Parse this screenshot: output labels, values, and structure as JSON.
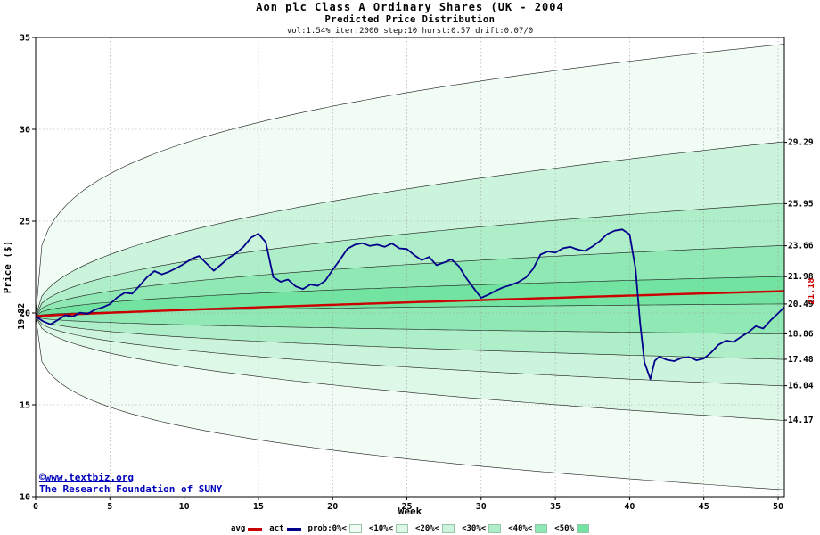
{
  "footer": {
    "site": "©www.textbiz.org",
    "org": "The Research Foundation of SUNY"
  },
  "chart_data": {
    "type": "fan",
    "title": "Aon plc Class A Ordinary Shares (UK - 2004",
    "subtitle": "Predicted Price Distribution",
    "params_line": "vol:1.54% iter:2000 step:10 hurst:0.57 drift:0.07/0",
    "xlabel": "Week",
    "ylabel": "Price ($)",
    "xlim": [
      0,
      50.42
    ],
    "ylim": [
      10,
      35
    ],
    "grid": true,
    "x_axis": {
      "label": "Week",
      "ticks": [
        0,
        5,
        10,
        15,
        20,
        25,
        30,
        35,
        40,
        45,
        50
      ]
    },
    "y_axis": {
      "label": "Price ($)",
      "ticks": [
        10,
        15,
        20,
        25,
        30,
        35
      ]
    },
    "start_label": "19.82",
    "avg": {
      "start": 19.82,
      "end": 21.18,
      "label": "21.18",
      "color": "#cc0000"
    },
    "bands": {
      "start_value": 19.82,
      "boundaries": [
        {
          "end": 34.6,
          "k": 0.28,
          "label": ""
        },
        {
          "end": 29.29,
          "k": 0.45,
          "label": "29.29"
        },
        {
          "end": 25.95,
          "k": 0.45,
          "label": "25.95"
        },
        {
          "end": 23.66,
          "k": 0.45,
          "label": "23.66"
        },
        {
          "end": 21.98,
          "k": 0.45,
          "label": "21.98"
        },
        {
          "end": 20.49,
          "k": 0.45,
          "label": "20.49"
        },
        {
          "end": 18.86,
          "k": 0.45,
          "label": "18.86"
        },
        {
          "end": 17.48,
          "k": 0.45,
          "label": "17.48"
        },
        {
          "end": 16.04,
          "k": 0.45,
          "label": "16.04"
        },
        {
          "end": 14.17,
          "k": 0.45,
          "label": "14.17"
        },
        {
          "end": 10.4,
          "k": 0.28,
          "label": ""
        }
      ],
      "fill_colors": [
        "#f1fdf4",
        "#ccf4dc",
        "#aeeec8",
        "#90e9b4",
        "#72e3a0",
        "#90e9b4",
        "#aeeec8",
        "#ccf4dc",
        "#ddf8e6",
        "#f1fdf4"
      ]
    },
    "actual": {
      "name": "act",
      "color": "#00008b",
      "points": [
        [
          0,
          19.82
        ],
        [
          0.5,
          19.55
        ],
        [
          1,
          19.38
        ],
        [
          1.5,
          19.62
        ],
        [
          2,
          19.88
        ],
        [
          2.5,
          19.8
        ],
        [
          3,
          20.02
        ],
        [
          3.5,
          19.95
        ],
        [
          4,
          20.18
        ],
        [
          4.5,
          20.3
        ],
        [
          5,
          20.48
        ],
        [
          5.5,
          20.85
        ],
        [
          6,
          21.1
        ],
        [
          6.5,
          21.05
        ],
        [
          7,
          21.48
        ],
        [
          7.5,
          21.95
        ],
        [
          8,
          22.28
        ],
        [
          8.5,
          22.1
        ],
        [
          9,
          22.25
        ],
        [
          9.5,
          22.45
        ],
        [
          10,
          22.68
        ],
        [
          10.5,
          22.95
        ],
        [
          11,
          23.1
        ],
        [
          11.5,
          22.7
        ],
        [
          12,
          22.3
        ],
        [
          12.5,
          22.65
        ],
        [
          13,
          23.0
        ],
        [
          13.5,
          23.25
        ],
        [
          14,
          23.6
        ],
        [
          14.5,
          24.1
        ],
        [
          15,
          24.32
        ],
        [
          15.5,
          23.85
        ],
        [
          16,
          21.95
        ],
        [
          16.5,
          21.7
        ],
        [
          17,
          21.82
        ],
        [
          17.5,
          21.45
        ],
        [
          18,
          21.3
        ],
        [
          18.5,
          21.55
        ],
        [
          19,
          21.48
        ],
        [
          19.5,
          21.75
        ],
        [
          20,
          22.35
        ],
        [
          20.5,
          22.9
        ],
        [
          21,
          23.5
        ],
        [
          21.5,
          23.72
        ],
        [
          22,
          23.8
        ],
        [
          22.5,
          23.65
        ],
        [
          23,
          23.72
        ],
        [
          23.5,
          23.6
        ],
        [
          24,
          23.78
        ],
        [
          24.5,
          23.52
        ],
        [
          25,
          23.48
        ],
        [
          25.5,
          23.15
        ],
        [
          26,
          22.88
        ],
        [
          26.5,
          23.05
        ],
        [
          27,
          22.6
        ],
        [
          27.5,
          22.75
        ],
        [
          28,
          22.92
        ],
        [
          28.5,
          22.55
        ],
        [
          29,
          21.9
        ],
        [
          29.5,
          21.35
        ],
        [
          30,
          20.82
        ],
        [
          30.5,
          21.0
        ],
        [
          31,
          21.22
        ],
        [
          31.5,
          21.4
        ],
        [
          32,
          21.52
        ],
        [
          32.5,
          21.68
        ],
        [
          33,
          21.92
        ],
        [
          33.5,
          22.4
        ],
        [
          34,
          23.18
        ],
        [
          34.5,
          23.35
        ],
        [
          35,
          23.28
        ],
        [
          35.5,
          23.52
        ],
        [
          36,
          23.6
        ],
        [
          36.5,
          23.45
        ],
        [
          37,
          23.38
        ],
        [
          37.5,
          23.62
        ],
        [
          38,
          23.92
        ],
        [
          38.5,
          24.3
        ],
        [
          39,
          24.48
        ],
        [
          39.5,
          24.55
        ],
        [
          40,
          24.28
        ],
        [
          40.4,
          22.4
        ],
        [
          40.7,
          19.5
        ],
        [
          41,
          17.3
        ],
        [
          41.4,
          16.4
        ],
        [
          41.7,
          17.4
        ],
        [
          42,
          17.62
        ],
        [
          42.5,
          17.45
        ],
        [
          43,
          17.38
        ],
        [
          43.5,
          17.55
        ],
        [
          44,
          17.6
        ],
        [
          44.5,
          17.42
        ],
        [
          45,
          17.52
        ],
        [
          45.5,
          17.85
        ],
        [
          46,
          18.28
        ],
        [
          46.5,
          18.5
        ],
        [
          47,
          18.42
        ],
        [
          47.5,
          18.7
        ],
        [
          48,
          18.95
        ],
        [
          48.5,
          19.28
        ],
        [
          49,
          19.15
        ],
        [
          49.5,
          19.6
        ],
        [
          50,
          19.98
        ],
        [
          50.4,
          20.3
        ]
      ]
    },
    "legend": {
      "items": [
        {
          "label": "avg",
          "type": "line",
          "color": "#cc0000"
        },
        {
          "label": "act",
          "type": "line",
          "color": "#00008b"
        },
        {
          "label": "prob:0%<",
          "type": "swatch",
          "color": "#f1fdf4"
        },
        {
          "label": "<10%<",
          "type": "swatch",
          "color": "#ddf8e6"
        },
        {
          "label": "<20%<",
          "type": "swatch",
          "color": "#ccf4dc"
        },
        {
          "label": "<30%<",
          "type": "swatch",
          "color": "#aeeec8"
        },
        {
          "label": "<40%<",
          "type": "swatch",
          "color": "#90e9b4"
        },
        {
          "label": "<50%",
          "type": "swatch",
          "color": "#72e3a0"
        }
      ]
    }
  }
}
